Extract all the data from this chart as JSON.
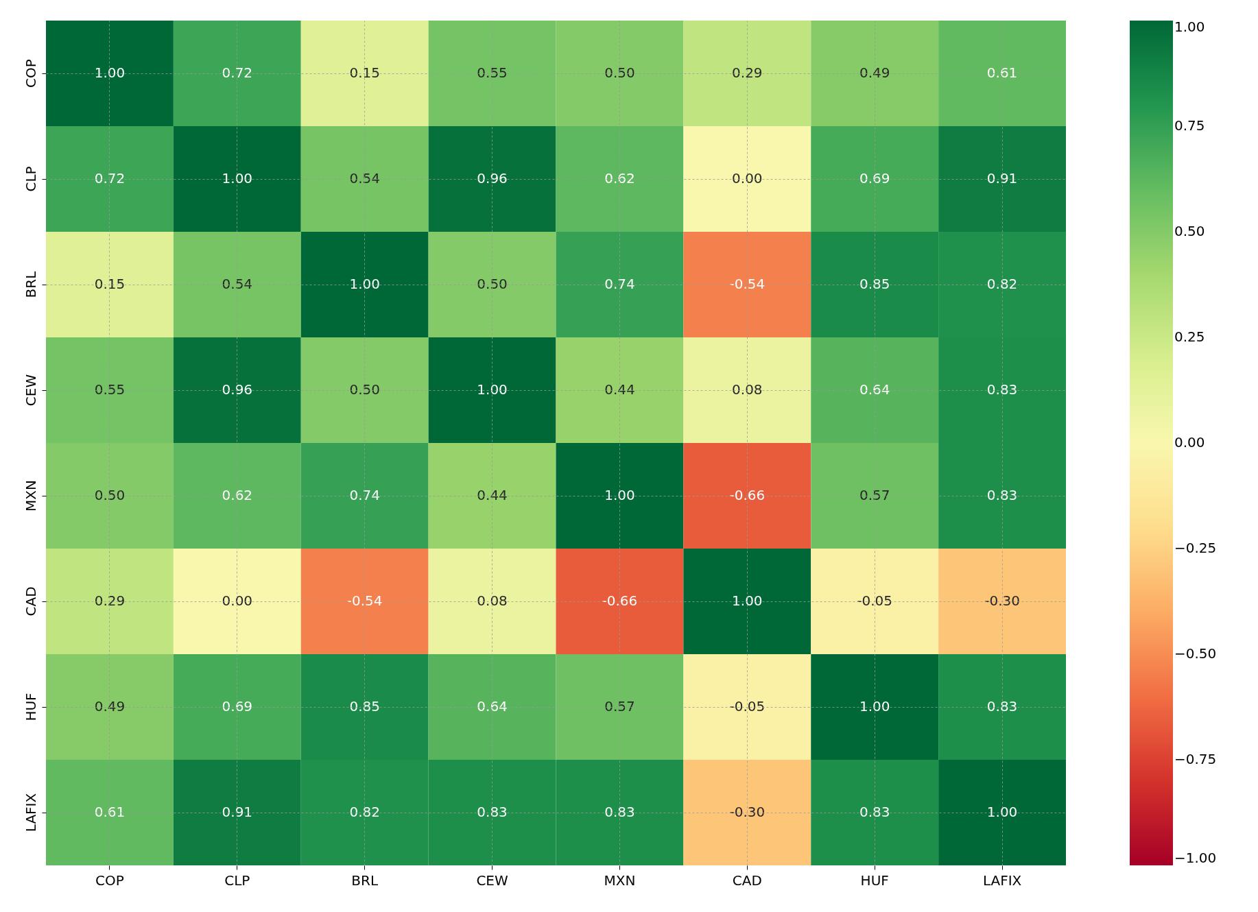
{
  "chart_data": {
    "type": "heatmap",
    "categories": [
      "COP",
      "CLP",
      "BRL",
      "CEW",
      "MXN",
      "CAD",
      "HUF",
      "LAFIX"
    ],
    "y_categories": [
      "COP",
      "CLP",
      "BRL",
      "CEW",
      "MXN",
      "CAD",
      "HUF",
      "LAFIX"
    ],
    "cells": [
      [
        1.0,
        0.72,
        0.15,
        0.55,
        0.5,
        0.29,
        0.49,
        0.61
      ],
      [
        0.72,
        1.0,
        0.54,
        0.96,
        0.62,
        0.0,
        0.69,
        0.91
      ],
      [
        0.15,
        0.54,
        1.0,
        0.5,
        0.74,
        -0.54,
        0.85,
        0.82
      ],
      [
        0.55,
        0.96,
        0.5,
        1.0,
        0.44,
        0.08,
        0.64,
        0.83
      ],
      [
        0.5,
        0.62,
        0.74,
        0.44,
        1.0,
        -0.66,
        0.57,
        0.83
      ],
      [
        0.29,
        0.0,
        -0.54,
        0.08,
        -0.66,
        1.0,
        -0.05,
        -0.3
      ],
      [
        0.49,
        0.69,
        0.85,
        0.64,
        0.57,
        -0.05,
        1.0,
        0.83
      ],
      [
        0.61,
        0.91,
        0.82,
        0.83,
        0.83,
        -0.3,
        0.83,
        1.0
      ]
    ],
    "cell_labels": [
      [
        "1.00",
        "0.72",
        "0.15",
        "0.55",
        "0.50",
        "0.29",
        "0.49",
        "0.61"
      ],
      [
        "0.72",
        "1.00",
        "0.54",
        "0.96",
        "0.62",
        "0.00",
        "0.69",
        "0.91"
      ],
      [
        "0.15",
        "0.54",
        "1.00",
        "0.50",
        "0.74",
        "-0.54",
        "0.85",
        "0.82"
      ],
      [
        "0.55",
        "0.96",
        "0.50",
        "1.00",
        "0.44",
        "0.08",
        "0.64",
        "0.83"
      ],
      [
        "0.50",
        "0.62",
        "0.74",
        "0.44",
        "1.00",
        "-0.66",
        "0.57",
        "0.83"
      ],
      [
        "0.29",
        "0.00",
        "-0.54",
        "0.08",
        "-0.66",
        "1.00",
        "-0.05",
        "-0.30"
      ],
      [
        "0.49",
        "0.69",
        "0.85",
        "0.64",
        "0.57",
        "-0.05",
        "1.00",
        "0.83"
      ],
      [
        "0.61",
        "0.91",
        "0.82",
        "0.83",
        "0.83",
        "-0.30",
        "0.83",
        "1.00"
      ]
    ],
    "clim": [
      -1,
      1
    ],
    "cticks": [
      {
        "value": -1,
        "label": "−1.00"
      },
      {
        "value": -0.75,
        "label": "−0.75"
      },
      {
        "value": -0.5,
        "label": "−0.50"
      },
      {
        "value": -0.25,
        "label": "−0.25"
      },
      {
        "value": 0,
        "label": "0.00"
      },
      {
        "value": 0.25,
        "label": "0.25"
      },
      {
        "value": 0.5,
        "label": "0.50"
      },
      {
        "value": 0.75,
        "label": "0.75"
      },
      {
        "value": 1,
        "label": "1.00"
      }
    ],
    "data_labels": true,
    "grid": true
  }
}
